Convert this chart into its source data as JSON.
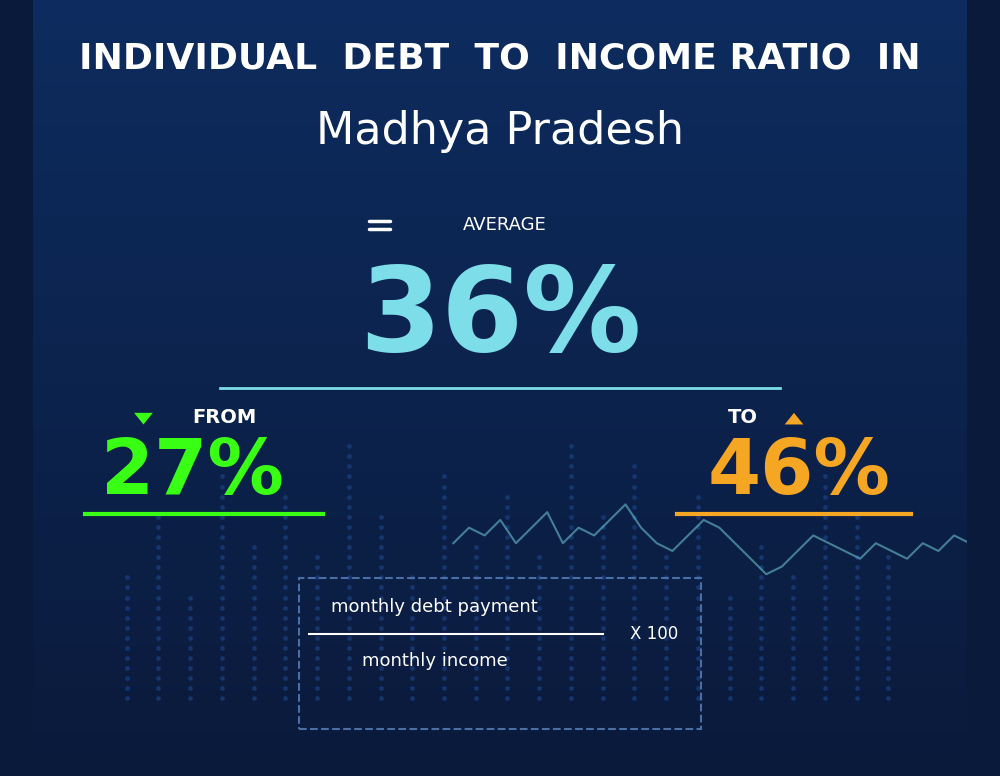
{
  "title_line1": "INDIVIDUAL  DEBT  TO  INCOME RATIO  IN",
  "title_line2": "Madhya Pradesh",
  "avg_label": "AVERAGE",
  "avg_value": "36%",
  "from_label": "FROM",
  "from_value": "27%",
  "to_label": "TO",
  "to_value": "46%",
  "formula_numerator": "monthly debt payment",
  "formula_denominator": "monthly income",
  "formula_multiplier": "X 100",
  "bg_color_top": "#0a1a3a",
  "bg_color_bottom": "#0d2a5e",
  "title_line1_color": "#ffffff",
  "title_line2_color": "#ffffff",
  "avg_label_color": "#ffffff",
  "avg_value_color": "#7ddde8",
  "from_value_color": "#39ff14",
  "to_value_color": "#f5a623",
  "formula_color": "#ffffff",
  "underline_avg_color": "#7ddde8",
  "underline_from_color": "#39ff14",
  "underline_to_color": "#f5a623",
  "arrow_down_color": "#39ff14",
  "arrow_up_color": "#f5a623",
  "equal_icon_color": "#7ddde8",
  "dashed_border_color": "#4a6fa5",
  "dot_color": "#1a4080",
  "line_color": "#7ddde8"
}
